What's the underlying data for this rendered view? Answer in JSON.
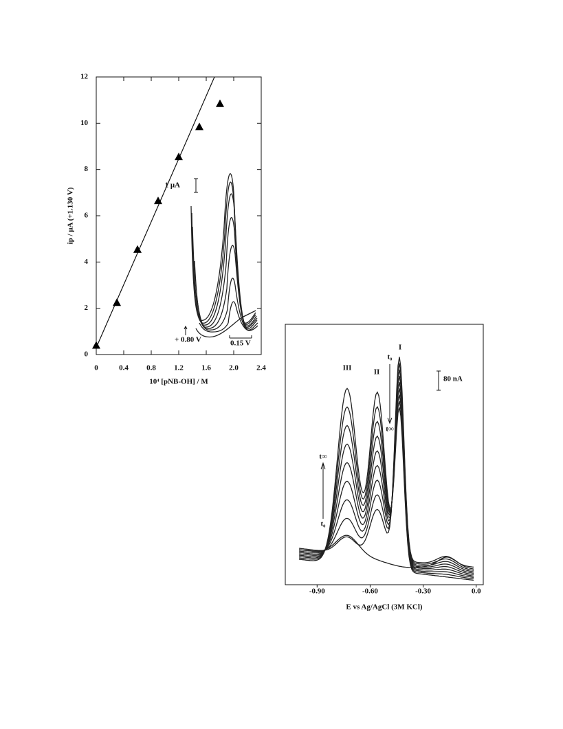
{
  "chart_data": [
    {
      "type": "scatter",
      "x_label": "10⁴ [pNB-OH] / M",
      "y_label": "ip / μA (+1.130 V)",
      "x": [
        0,
        0.3,
        0.6,
        0.9,
        1.2,
        1.5,
        1.8
      ],
      "series": [
        {
          "color": "#000000",
          "values": [
            0.4,
            2.25,
            4.55,
            6.65,
            8.55,
            9.85,
            10.85
          ]
        }
      ],
      "fit_line": {
        "x": [
          0,
          1.72
        ],
        "values": [
          0.3,
          12
        ]
      },
      "xlim": [
        0,
        2.4
      ],
      "xticks": [
        0,
        0.4,
        0.8,
        1.2,
        1.6,
        {
          "value": 2,
          "label": "2.0"
        },
        2.4
      ],
      "ylim": [
        0,
        12
      ],
      "yticks": [
        0,
        2,
        4,
        6,
        8,
        10,
        12
      ],
      "annotations": [
        "1 μA",
        "+ 0.80 V",
        "0.15 V"
      ]
    },
    {
      "type": "line",
      "x_label": "E vs Ag/AgCl (3M KCl)",
      "xlim": [
        -1.08,
        0.04
      ],
      "xticks": [
        {
          "value": -0.9,
          "label": "-0.90"
        },
        {
          "value": -0.6,
          "label": "-0.60"
        },
        {
          "value": -0.3,
          "label": "-0.30"
        },
        {
          "value": 0,
          "label": "0.0"
        }
      ],
      "annotations": [
        "III",
        "II",
        "I",
        "t₀",
        "t∞",
        "t∞",
        "t₀",
        "80 nA"
      ]
    }
  ]
}
